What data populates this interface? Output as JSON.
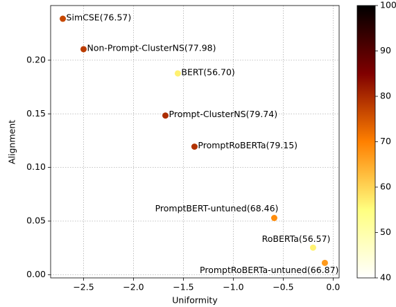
{
  "chart_data": {
    "type": "scatter",
    "xlabel": "Uniformity",
    "ylabel": "Alignment",
    "x": [
      -2.708,
      -2.5,
      -1.556,
      -1.68,
      -1.389,
      -0.59,
      -0.201,
      -0.083
    ],
    "values": [
      0.2387,
      0.2103,
      0.1877,
      0.1484,
      0.1194,
      0.0529,
      0.0252,
      0.011
    ],
    "scores": [
      76.57,
      77.98,
      56.7,
      79.74,
      79.15,
      68.46,
      56.57,
      66.87
    ],
    "point_labels": [
      "SimCSE(76.57)",
      "Non-Prompt-ClusterNS(77.98)",
      "BERT(56.70)",
      "Prompt-ClusterNS(79.74)",
      "PromptRoBERTa(79.15)",
      "PromptBERT-untuned(68.46)",
      "RoBERTa(56.57)",
      "PromptRoBERTa-untuned(66.87)"
    ],
    "colormap": "afmhot_r",
    "clim": [
      40,
      100
    ],
    "cticks": [
      40,
      50,
      60,
      70,
      80,
      90,
      100
    ],
    "xlim": [
      -2.83,
      0.06
    ],
    "xticks": [
      {
        "value": -2.5,
        "label": "−2.5"
      },
      {
        "value": -2.0,
        "label": "−2.0"
      },
      {
        "value": -1.5,
        "label": "−1.5"
      },
      {
        "value": -1.0,
        "label": "−1.0"
      },
      {
        "value": -0.5,
        "label": "−0.5"
      },
      {
        "value": 0.0,
        "label": "0.0"
      }
    ],
    "ylim": [
      -0.003,
      0.251
    ],
    "yticks": [
      {
        "value": 0.0,
        "label": "0.00"
      },
      {
        "value": 0.05,
        "label": "0.05"
      },
      {
        "value": 0.1,
        "label": "0.10"
      },
      {
        "value": 0.15,
        "label": "0.15"
      },
      {
        "value": 0.2,
        "label": "0.20"
      }
    ],
    "grid": true
  }
}
